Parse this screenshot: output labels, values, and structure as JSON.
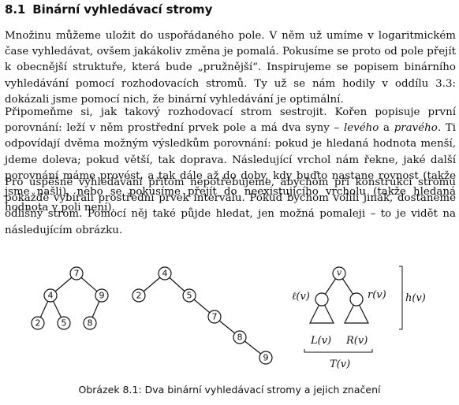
{
  "section": {
    "number": "8.1",
    "title": "Binární vyhledávací stromy"
  },
  "paragraphs": {
    "p1": "Množinu můžeme uložit do uspořádaného pole. V něm už umíme v logaritmickém čase vyhledávat, ovšem jakákoliv změna je pomalá. Pokusíme se proto od pole přejít k obecnější struktuře, která bude „pružnější“. Inspirujeme se popisem binárního vyhledávání pomocí rozhodovacích stromů. Ty už se nám hodily v oddílu 3.3: dokázali jsme pomocí nich, že binární vyhledávání je optimální.",
    "p2_a": "Připomeňme si, jak takový rozhodovací strom sestrojit. Kořen popisuje první porovnání: leží v něm prostřední prvek pole a má dva syny – ",
    "p2_left": "levého",
    "p2_mid": " a ",
    "p2_right": "pravého",
    "p2_b": ". Ti odpovídají dvěma možným výsledkům porovnání: pokud je hledaná hodnota menší, jdeme doleva; pokud větší, tak doprava. Následující vrchol nám řekne, jaké další porovnání máme provést, a tak dále až do doby, kdy buďto nastane rovnost (takže jsme našli), nebo se pokusíme přejít do neexistujícího vrcholu (takže hledaná hodnota v poli není).",
    "p3": "Pro úspěšné vyhledávání přitom nepotřebujeme, abychom při konstrukci stromu pokaždé vybírali prostřední prvek intervalu. Pokud bychom volili jinak, dostaneme odlišný strom. Pomocí něj také půjde hledat, jen možná pomaleji – to je vidět na následujícím obrázku."
  },
  "figure": {
    "tree1": {
      "root": "7",
      "left": "4",
      "right": "9",
      "ll": "2",
      "lr": "5",
      "rl": "8"
    },
    "tree2": [
      "4",
      "2",
      "5",
      "7",
      "8",
      "9"
    ],
    "tree3": {
      "root": "v",
      "left_label": "ℓ(v)",
      "right_label": "r(v)",
      "left_sub": "L(v)",
      "right_sub": "R(v)",
      "tree_label": "T(v)",
      "height_label": "h(v)"
    },
    "caption": "Obrázek 8.1: Dva binární vyhledávací stromy a jejich značení"
  }
}
